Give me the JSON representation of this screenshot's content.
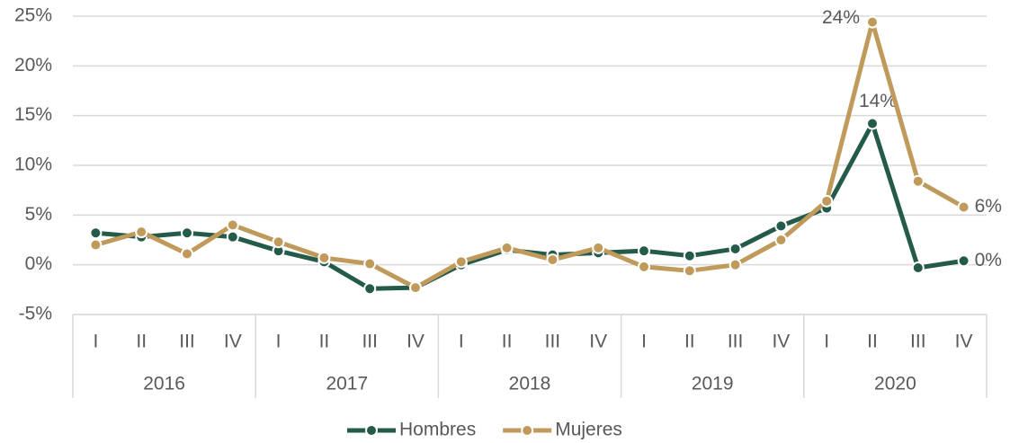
{
  "chart_data": {
    "type": "line",
    "categories": [
      "I",
      "II",
      "III",
      "IV",
      "I",
      "II",
      "III",
      "IV",
      "I",
      "II",
      "III",
      "IV",
      "I",
      "II",
      "III",
      "IV",
      "I",
      "II",
      "III",
      "IV"
    ],
    "groups": [
      "2016",
      "2017",
      "2018",
      "2019",
      "2020"
    ],
    "series": [
      {
        "name": "Hombres",
        "color": "#245a4a",
        "values": [
          3.2,
          2.8,
          3.2,
          2.8,
          1.4,
          0.3,
          -2.4,
          -2.3,
          0.0,
          1.5,
          1.0,
          1.2,
          1.4,
          0.9,
          1.6,
          3.9,
          5.7,
          14.2,
          -0.3,
          0.4
        ],
        "value_labels": [
          null,
          null,
          null,
          null,
          null,
          null,
          null,
          null,
          null,
          null,
          null,
          null,
          null,
          null,
          null,
          null,
          null,
          "14%",
          null,
          "0%"
        ]
      },
      {
        "name": "Mujeres",
        "color": "#c09a5b",
        "values": [
          2.0,
          3.3,
          1.1,
          4.0,
          2.3,
          0.7,
          0.1,
          -2.3,
          0.3,
          1.7,
          0.5,
          1.7,
          -0.2,
          -0.6,
          0.0,
          2.5,
          6.4,
          24.4,
          8.4,
          5.8
        ],
        "value_labels": [
          null,
          null,
          null,
          null,
          null,
          null,
          null,
          null,
          null,
          null,
          null,
          null,
          null,
          null,
          null,
          null,
          null,
          "24%",
          null,
          "6%"
        ]
      }
    ],
    "ylim": [
      -5,
      25
    ],
    "yticks": [
      {
        "value": -5,
        "label": "-5%"
      },
      {
        "value": 0,
        "label": "0%"
      },
      {
        "value": 5,
        "label": "5%"
      },
      {
        "value": 10,
        "label": "10%"
      },
      {
        "value": 15,
        "label": "15%"
      },
      {
        "value": 20,
        "label": "20%"
      },
      {
        "value": 25,
        "label": "25%"
      }
    ],
    "grid": true,
    "legend": "bottom"
  }
}
